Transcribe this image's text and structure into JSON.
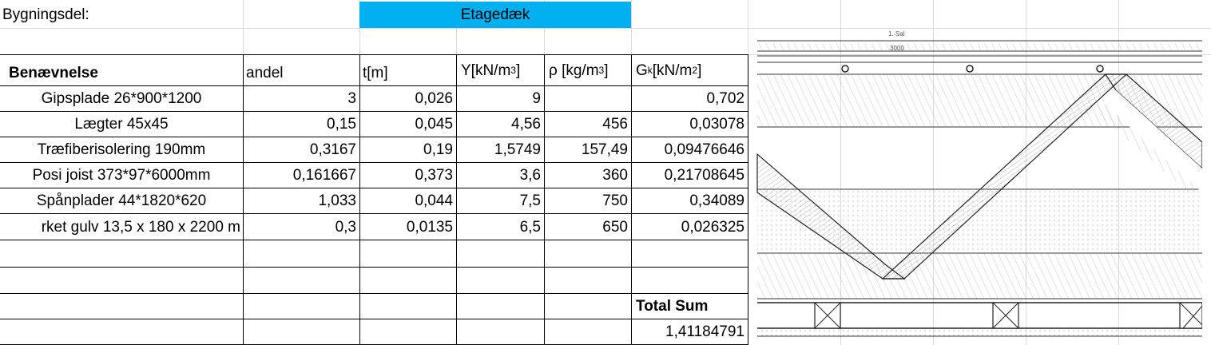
{
  "header": {
    "label": "Bygningsdel:",
    "value": "Etagedæk"
  },
  "columns": {
    "name": "Benævnelse",
    "share": "andel",
    "thickness": "t[m]",
    "gamma_base": "Y[kN/m",
    "gamma_exp": "3",
    "gamma_close": "]",
    "rho_base": "ρ [kg/m",
    "rho_exp": "3",
    "rho_close": "]",
    "gk_base": "G",
    "gk_sub": "k",
    "gk_mid": "[kN/m",
    "gk_exp": "2",
    "gk_close": "]"
  },
  "rows": [
    {
      "name": "Gipsplade 26*900*1200",
      "share": "3",
      "t": "0,026",
      "gamma": "9",
      "rho": "",
      "gk": "0,702"
    },
    {
      "name": "Lægter 45x45",
      "share": "0,15",
      "t": "0,045",
      "gamma": "4,56",
      "rho": "456",
      "gk": "0,03078"
    },
    {
      "name": "Træfiberisolering 190mm",
      "share": "0,3167",
      "t": "0,19",
      "gamma": "1,5749",
      "rho": "157,49",
      "gk": "0,09476646"
    },
    {
      "name": "Posi joist 373*97*6000mm",
      "share": "0,161667",
      "t": "0,373",
      "gamma": "3,6",
      "rho": "360",
      "gk": "0,21708645"
    },
    {
      "name": "Spånplader 44*1820*620",
      "share": "1,033",
      "t": "0,044",
      "gamma": "7,5",
      "rho": "750",
      "gk": "0,34089"
    },
    {
      "name": "rket gulv 13,5 x 180 x 2200 m",
      "share": "0,3",
      "t": "0,0135",
      "gamma": "6,5",
      "rho": "650",
      "gk": "0,026325"
    }
  ],
  "total": {
    "label": "Total Sum",
    "value": "1,41184791"
  },
  "drawing": {
    "level_label": "1. Sal",
    "dimension_label": "3000"
  }
}
